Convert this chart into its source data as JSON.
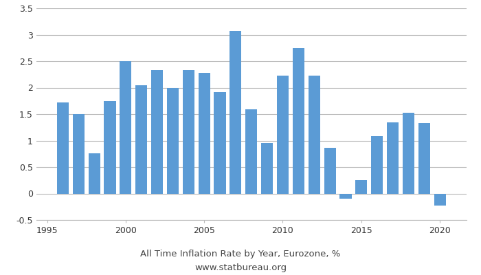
{
  "years": [
    1996,
    1997,
    1998,
    1999,
    2000,
    2001,
    2002,
    2003,
    2004,
    2005,
    2006,
    2007,
    2008,
    2009,
    2010,
    2011,
    2012,
    2013,
    2014,
    2015,
    2016,
    2017,
    2018,
    2019,
    2020
  ],
  "values": [
    1.72,
    1.5,
    0.76,
    1.75,
    2.5,
    2.05,
    2.33,
    2.0,
    2.33,
    2.28,
    1.92,
    3.07,
    1.59,
    0.95,
    2.23,
    2.75,
    2.23,
    0.86,
    -0.1,
    0.25,
    1.09,
    1.35,
    1.53,
    1.33,
    -0.23
  ],
  "bar_color": "#5B9BD5",
  "title_line1": "All Time Inflation Rate by Year, Eurozone, %",
  "title_line2": "www.statbureau.org",
  "xlim": [
    1994.3,
    2021.7
  ],
  "ylim": [
    -0.5,
    3.5
  ],
  "yticks": [
    -0.5,
    0,
    0.5,
    1.0,
    1.5,
    2.0,
    2.5,
    3.0,
    3.5
  ],
  "ytick_labels": [
    "-0.5",
    "0",
    "0.5",
    "1",
    "1.5",
    "2",
    "2.5",
    "3",
    "3.5"
  ],
  "xticks": [
    1995,
    2000,
    2005,
    2010,
    2015,
    2020
  ],
  "grid_color": "#bbbbbb",
  "background_color": "#ffffff",
  "title_color": "#444444",
  "title_fontsize": 9.5,
  "bar_width": 0.75
}
